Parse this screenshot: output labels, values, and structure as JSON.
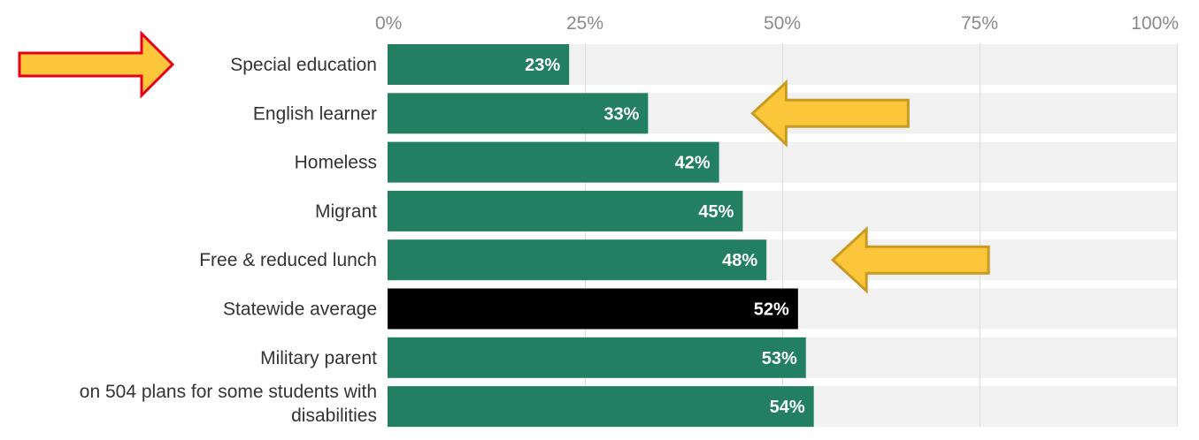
{
  "chart_data": {
    "type": "bar",
    "orientation": "horizontal",
    "categories": [
      "Special education",
      "English learner",
      "Homeless",
      "Migrant",
      "Free & reduced lunch",
      "Statewide average",
      "Military parent",
      "on 504 plans for some students with disabilities"
    ],
    "category_lines": [
      [
        "Special education"
      ],
      [
        "English learner"
      ],
      [
        "Homeless"
      ],
      [
        "Migrant"
      ],
      [
        "Free & reduced lunch"
      ],
      [
        "Statewide average"
      ],
      [
        "Military parent"
      ],
      [
        "on 504 plans for some students with",
        "disabilities"
      ]
    ],
    "values": [
      23,
      33,
      42,
      45,
      48,
      52,
      53,
      54
    ],
    "value_labels": [
      "23%",
      "33%",
      "42%",
      "45%",
      "48%",
      "52%",
      "53%",
      "54%"
    ],
    "xlim": [
      0,
      100
    ],
    "ticks": [
      0,
      25,
      50,
      75,
      100
    ],
    "tick_labels": [
      "0%",
      "25%",
      "50%",
      "75%",
      "100%"
    ],
    "grid": true,
    "bar_color": "#237f62",
    "highlight_color": "#000000",
    "highlight_category": "Statewide average",
    "track_color": "#f1f1f1",
    "annotations": [
      {
        "type": "arrow-right",
        "target": "Special education",
        "fill": "#fcc63b",
        "stroke": "#e8001a"
      },
      {
        "type": "arrow-left",
        "target": "English learner",
        "fill": "#fcc63b",
        "stroke": "#c99a22"
      },
      {
        "type": "arrow-left",
        "target": "Free & reduced lunch",
        "fill": "#fcc63b",
        "stroke": "#c99a22"
      }
    ]
  }
}
